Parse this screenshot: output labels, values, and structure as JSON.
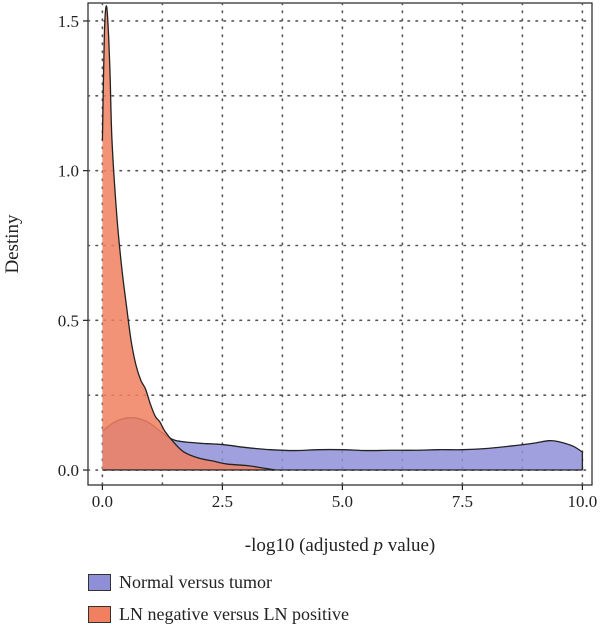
{
  "chart_data": {
    "type": "area",
    "xlabel_prefix": "-log10 (adjusted ",
    "xlabel_italic": "p",
    "xlabel_suffix": " value)",
    "ylabel": "Destiny",
    "xlim": [
      -0.3,
      10.2
    ],
    "ylim": [
      -0.05,
      1.56
    ],
    "x_ticks": [
      0.0,
      2.5,
      5.0,
      7.5,
      10.0
    ],
    "x_tick_labels": [
      "0.0",
      "2.5",
      "5.0",
      "7.5",
      "10.0"
    ],
    "y_ticks": [
      0.0,
      0.5,
      1.0,
      1.5
    ],
    "y_tick_labels": [
      "0.0",
      "0.5",
      "1.0",
      "1.5"
    ],
    "grid": "dotted",
    "legend_position": "bottom-left",
    "series": [
      {
        "name": "Normal versus tumor",
        "color": "#8f8fd8",
        "opacity": 0.85,
        "x": [
          0.0,
          0.2,
          0.4,
          0.6,
          0.8,
          1.0,
          1.2,
          1.5,
          2.0,
          2.5,
          3.0,
          3.5,
          4.0,
          4.5,
          5.0,
          5.5,
          6.0,
          6.5,
          7.0,
          7.5,
          8.0,
          8.5,
          9.0,
          9.3,
          9.5,
          9.8,
          10.0
        ],
        "y": [
          0.13,
          0.155,
          0.17,
          0.175,
          0.17,
          0.155,
          0.13,
          0.1,
          0.09,
          0.085,
          0.075,
          0.068,
          0.065,
          0.068,
          0.068,
          0.065,
          0.066,
          0.066,
          0.068,
          0.068,
          0.072,
          0.08,
          0.09,
          0.098,
          0.095,
          0.08,
          0.06
        ]
      },
      {
        "name": "LN negative versus LN positive",
        "color": "#f08060",
        "opacity": 0.85,
        "x": [
          0.0,
          0.04,
          0.08,
          0.12,
          0.16,
          0.2,
          0.3,
          0.4,
          0.5,
          0.6,
          0.7,
          0.8,
          0.9,
          1.0,
          1.1,
          1.2,
          1.3,
          1.5,
          1.7,
          2.0,
          2.3,
          2.6,
          3.0,
          3.3,
          3.6
        ],
        "y": [
          1.1,
          1.45,
          1.55,
          1.48,
          1.32,
          1.1,
          0.85,
          0.68,
          0.55,
          0.43,
          0.35,
          0.3,
          0.27,
          0.22,
          0.18,
          0.16,
          0.13,
          0.09,
          0.06,
          0.04,
          0.03,
          0.02,
          0.015,
          0.008,
          0.0
        ]
      }
    ]
  }
}
